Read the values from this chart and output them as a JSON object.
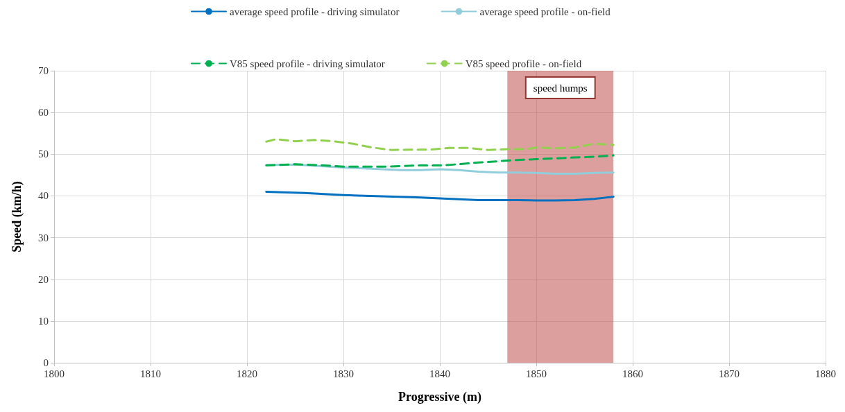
{
  "chart_data": {
    "type": "line",
    "xlabel": "Progressive (m)",
    "ylabel": "Speed (km/h)",
    "xlim": [
      1800,
      1880
    ],
    "xticks": [
      1800,
      1810,
      1820,
      1830,
      1840,
      1850,
      1860,
      1870,
      1880
    ],
    "ylim": [
      0,
      70
    ],
    "yticks": [
      0,
      10,
      20,
      30,
      40,
      50,
      60,
      70
    ],
    "grid": true,
    "legend": "top",
    "marker": "none",
    "series": [
      {
        "name": "average speed profile - driving simulator",
        "color": "#0070c0",
        "line_style": "solid",
        "x": [
          1822,
          1826,
          1830,
          1834,
          1838,
          1842,
          1844,
          1848,
          1850,
          1852,
          1854,
          1856,
          1858
        ],
        "values": [
          41,
          40.7,
          40.2,
          39.9,
          39.6,
          39.2,
          39.0,
          39.0,
          38.9,
          38.9,
          39.0,
          39.3,
          39.8
        ]
      },
      {
        "name": "average speed profile - on-field",
        "color": "#92cddc",
        "line_style": "solid",
        "x": [
          1822,
          1825,
          1828,
          1830,
          1834,
          1836,
          1838,
          1840,
          1842,
          1844,
          1846,
          1848,
          1850,
          1852,
          1854,
          1856,
          1858
        ],
        "values": [
          47.4,
          47.5,
          47.1,
          46.8,
          46.4,
          46.2,
          46.2,
          46.4,
          46.2,
          45.8,
          45.6,
          45.6,
          45.5,
          45.3,
          45.3,
          45.5,
          45.6
        ]
      },
      {
        "name": "V85 speed profile - driving simulator",
        "color": "#00b050",
        "line_style": "dashed",
        "x": [
          1822,
          1825,
          1828,
          1830,
          1834,
          1838,
          1840,
          1842,
          1844,
          1846,
          1848,
          1850,
          1852,
          1854,
          1856,
          1858
        ],
        "values": [
          47.3,
          47.6,
          47.3,
          47.0,
          47.0,
          47.3,
          47.3,
          47.6,
          48.0,
          48.3,
          48.6,
          48.8,
          49.0,
          49.2,
          49.4,
          49.7
        ]
      },
      {
        "name": "V85 speed profile - on-field",
        "color": "#92d050",
        "line_style": "dashed",
        "x": [
          1822,
          1823,
          1825,
          1827,
          1829,
          1831,
          1833,
          1835,
          1837,
          1839,
          1841,
          1843,
          1845,
          1847,
          1849,
          1850,
          1852,
          1854,
          1856,
          1858
        ],
        "values": [
          53,
          53.6,
          53.1,
          53.4,
          53.1,
          52.5,
          51.6,
          51.0,
          51.1,
          51.1,
          51.5,
          51.5,
          51.0,
          51.2,
          51.2,
          51.6,
          51.4,
          51.6,
          52.5,
          52.2
        ]
      }
    ],
    "bands": [
      {
        "axis": "x",
        "from": 1847,
        "to": 1858,
        "label": "speed humps",
        "color": "#c0504d"
      }
    ]
  }
}
